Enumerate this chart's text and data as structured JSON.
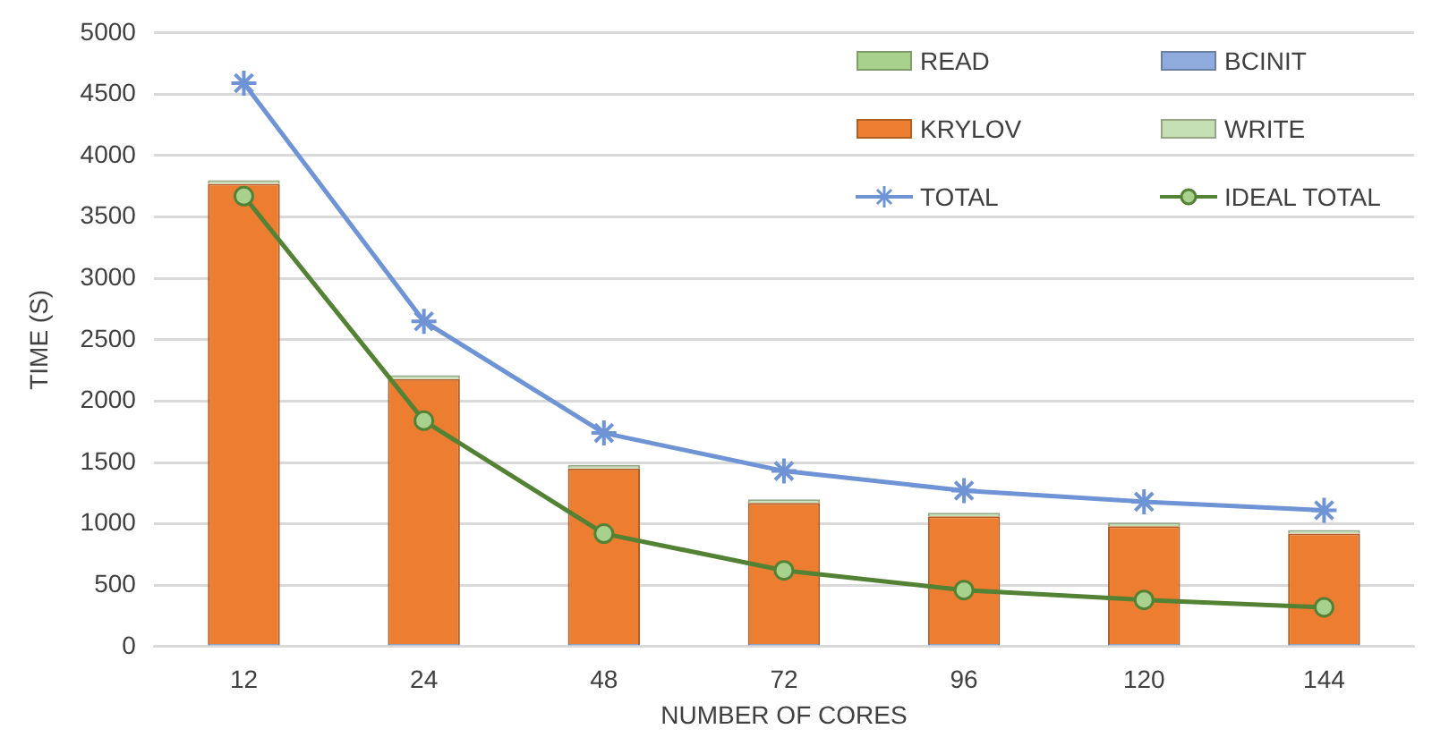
{
  "chart_data": {
    "type": "bar",
    "stacked": true,
    "xlabel": "NUMBER OF CORES",
    "ylabel": "TIME (S)",
    "categories": [
      "12",
      "24",
      "48",
      "72",
      "96",
      "120",
      "144"
    ],
    "series": [
      {
        "name": "READ",
        "color": "#a9d18e",
        "values": [
          10,
          10,
          10,
          10,
          10,
          10,
          10
        ]
      },
      {
        "name": "BCINIT",
        "color": "#8faadc",
        "values": [
          10,
          10,
          10,
          10,
          10,
          10,
          10
        ]
      },
      {
        "name": "KRYLOV",
        "color": "#ed7d31",
        "values": [
          3750,
          2160,
          1430,
          1150,
          1040,
          960,
          900
        ]
      },
      {
        "name": "WRITE",
        "color": "#c5e0b4",
        "values": [
          30,
          30,
          30,
          30,
          30,
          30,
          30
        ]
      },
      {
        "name": "TOTAL",
        "type": "line",
        "color": "#6f94d6",
        "marker": "cross",
        "values": [
          4590,
          2650,
          1740,
          1430,
          1270,
          1180,
          1110
        ]
      },
      {
        "name": "IDEAL TOTAL",
        "type": "line",
        "color": "#548235",
        "marker": "circle",
        "values": [
          3670,
          1840,
          920,
          620,
          460,
          380,
          320
        ]
      }
    ],
    "ylim": [
      0,
      5000
    ],
    "yticks": [
      0,
      500,
      1000,
      1500,
      2000,
      2500,
      3000,
      3500,
      4000,
      4500,
      5000
    ],
    "grid": "y",
    "legend": "top right"
  }
}
